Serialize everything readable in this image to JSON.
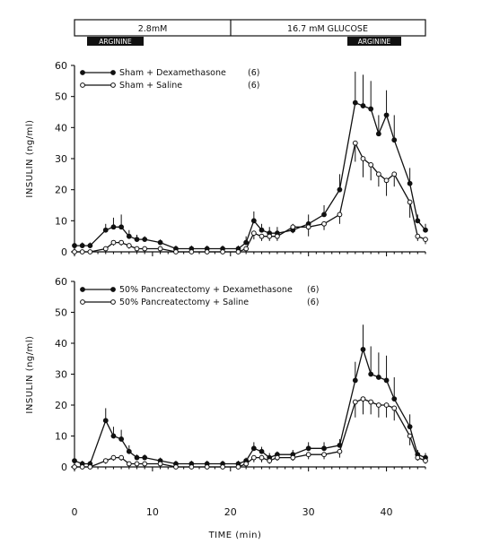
{
  "header": {
    "glucose_low": "2.8mM",
    "glucose_high": "16.7 mM GLUCOSE",
    "arginine_1": "ARGININE",
    "arginine_2": "ARGININE"
  },
  "x_axis": {
    "label": "TIME (min)",
    "ticks": [
      0,
      10,
      20,
      30,
      40
    ],
    "range": [
      0,
      45
    ]
  },
  "chart_data": [
    {
      "type": "line",
      "panel": "top",
      "ylabel": "INSULIN (ng/ml)",
      "ylim": [
        0,
        60
      ],
      "yticks": [
        0,
        10,
        20,
        30,
        40,
        50,
        60
      ],
      "xlim": [
        0,
        45
      ],
      "legend_position": "top-left",
      "series": [
        {
          "name": "Sham + Dexamethasone",
          "n_label": "(6)",
          "marker": "filled",
          "x": [
            0,
            1,
            2,
            4,
            5,
            6,
            7,
            8,
            9,
            11,
            13,
            15,
            17,
            19,
            21,
            22,
            23,
            24,
            25,
            26,
            28,
            30,
            32,
            34,
            36,
            37,
            38,
            39,
            40,
            41,
            43,
            44,
            45
          ],
          "y": [
            2,
            2,
            2,
            7,
            8,
            8,
            5,
            4,
            4,
            3,
            1,
            1,
            1,
            1,
            1,
            3,
            10,
            7,
            6,
            6,
            7,
            9,
            12,
            20,
            48,
            47,
            46,
            38,
            44,
            36,
            22,
            10,
            7
          ],
          "err": [
            1.5,
            1,
            1,
            2,
            3,
            4,
            2,
            1.5,
            1,
            1,
            1,
            1,
            1,
            1,
            1,
            2,
            3,
            2,
            2,
            2,
            2,
            3,
            3,
            5,
            10,
            10,
            9,
            6,
            8,
            8,
            5,
            2,
            2
          ]
        },
        {
          "name": "Sham + Saline",
          "n_label": "(6)",
          "marker": "open",
          "x": [
            0,
            1,
            2,
            4,
            5,
            6,
            7,
            8,
            9,
            11,
            13,
            15,
            17,
            19,
            21,
            22,
            23,
            24,
            25,
            26,
            28,
            30,
            32,
            34,
            36,
            37,
            38,
            39,
            40,
            41,
            43,
            44,
            45
          ],
          "y": [
            0,
            0,
            0,
            1,
            3,
            3,
            2,
            1,
            1,
            1,
            0,
            0,
            0,
            0,
            0,
            1,
            6,
            5,
            5,
            5,
            8,
            8,
            9,
            12,
            35,
            30,
            28,
            25,
            23,
            25,
            16,
            5,
            4
          ],
          "err": [
            1,
            1,
            1,
            1,
            1,
            1,
            1,
            1,
            1,
            1,
            1,
            1,
            1,
            1,
            1,
            1,
            2,
            1.5,
            1.5,
            1.5,
            2,
            3,
            2,
            3,
            6,
            6,
            5,
            4,
            5,
            4,
            5,
            1.5,
            1.5
          ]
        }
      ]
    },
    {
      "type": "line",
      "panel": "bottom",
      "ylabel": "INSULIN (ng/ml)",
      "ylim": [
        0,
        60
      ],
      "yticks": [
        0,
        10,
        20,
        30,
        40,
        50,
        60
      ],
      "xlim": [
        0,
        45
      ],
      "legend_position": "top-left",
      "series": [
        {
          "name": "50% Pancreatectomy + Dexamethasone",
          "n_label": "(6)",
          "marker": "filled",
          "x": [
            0,
            1,
            2,
            4,
            5,
            6,
            7,
            8,
            9,
            11,
            13,
            15,
            17,
            19,
            21,
            22,
            23,
            24,
            25,
            26,
            28,
            30,
            32,
            34,
            36,
            37,
            38,
            39,
            40,
            41,
            43,
            44,
            45
          ],
          "y": [
            2,
            1,
            1,
            15,
            10,
            9,
            5,
            3,
            3,
            2,
            1,
            1,
            1,
            1,
            1,
            2,
            6,
            5,
            3,
            4,
            4,
            6,
            6,
            7,
            28,
            38,
            30,
            29,
            28,
            22,
            13,
            4,
            3
          ],
          "err": [
            1,
            1,
            1,
            4,
            3,
            3,
            2,
            1,
            1,
            1,
            1,
            1,
            1,
            1,
            1,
            1,
            2,
            1.5,
            1.5,
            1,
            1.5,
            2,
            2,
            2,
            6,
            8,
            9,
            8,
            8,
            7,
            4,
            1.5,
            1.5
          ]
        },
        {
          "name": "50% Pancreatectomy + Saline",
          "n_label": "(6)",
          "marker": "open",
          "x": [
            0,
            1,
            2,
            4,
            5,
            6,
            7,
            8,
            9,
            11,
            13,
            15,
            17,
            19,
            21,
            22,
            23,
            24,
            25,
            26,
            28,
            30,
            32,
            34,
            36,
            37,
            38,
            39,
            40,
            41,
            43,
            44,
            45
          ],
          "y": [
            0,
            0,
            0,
            2,
            3,
            3,
            1,
            1,
            1,
            1,
            0,
            0,
            0,
            0,
            0,
            1,
            3,
            3,
            2,
            3,
            3,
            4,
            4,
            5,
            21,
            22,
            21,
            20,
            20,
            19,
            10,
            3,
            2
          ],
          "err": [
            1,
            1,
            1,
            1,
            1,
            1,
            1,
            1,
            1,
            1,
            1,
            1,
            1,
            1,
            1,
            1,
            1.5,
            1.5,
            1,
            1,
            1,
            1.5,
            1.5,
            2,
            5,
            5,
            4,
            4,
            4,
            4,
            3,
            1,
            1
          ]
        }
      ]
    }
  ]
}
